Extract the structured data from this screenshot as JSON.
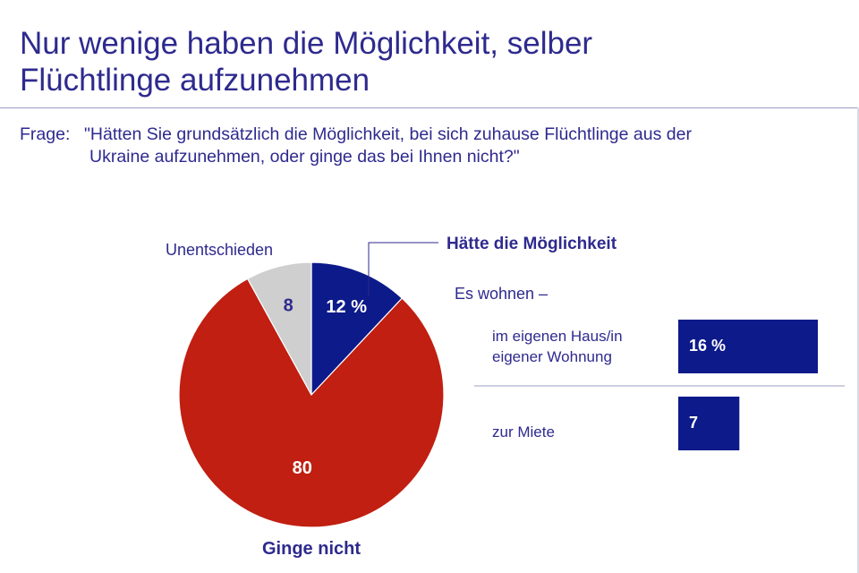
{
  "title_lines": [
    "Nur wenige haben die Möglichkeit, selber",
    "Flüchtlinge aufzunehmen"
  ],
  "question": {
    "prefix": "Frage:",
    "lines": [
      "\"Hätten Sie grundsätzlich die Möglichkeit, bei sich zuhause Flüchtlinge aus der",
      "Ukraine aufzunehmen, oder ginge das bei Ihnen nicht?\""
    ]
  },
  "colors": {
    "blue": "#0d1a8a",
    "red": "#c01f11",
    "grey": "#cfcfcf",
    "text": "#2e2a8e",
    "rule": "#9c9cc4"
  },
  "chart_data": [
    {
      "type": "pie",
      "unit": "%",
      "slices": [
        {
          "name": "Hätte die Möglichkeit",
          "value": 12,
          "label": "12 %",
          "color": "#0d1a8a"
        },
        {
          "name": "Ginge nicht",
          "value": 80,
          "label": "80",
          "color": "#c01f11"
        },
        {
          "name": "Unentschieden",
          "value": 8,
          "label": "8",
          "color": "#cfcfcf"
        }
      ]
    },
    {
      "type": "bar",
      "orientation": "horizontal",
      "title": "Es wohnen –",
      "categories": [
        "im eigenen Haus/in eigener Wohnung",
        "zur Miete"
      ],
      "category_lines": [
        [
          "im eigenen Haus/in",
          "eigener Wohnung"
        ],
        [
          "zur Miete"
        ]
      ],
      "values": [
        16,
        7
      ],
      "value_labels": [
        "16 %",
        "7"
      ],
      "color": "#0d1a8a",
      "xlim": [
        0,
        16
      ]
    }
  ]
}
